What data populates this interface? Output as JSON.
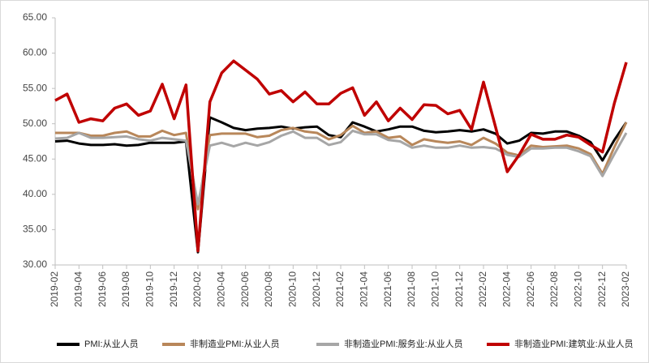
{
  "chart_data": {
    "type": "line",
    "categories": [
      "2019-02",
      null,
      "2019-04",
      null,
      "2019-06",
      null,
      "2019-08",
      null,
      "2019-10",
      null,
      "2019-12",
      null,
      "2020-02",
      null,
      "2020-04",
      null,
      "2020-06",
      null,
      "2020-08",
      null,
      "2020-10",
      null,
      "2020-12",
      null,
      "2021-02",
      null,
      "2021-04",
      null,
      "2021-06",
      null,
      "2021-08",
      null,
      "2021-10",
      null,
      "2021-12",
      null,
      "2022-02",
      null,
      "2022-04",
      null,
      "2022-06",
      null,
      "2022-08",
      null,
      "2022-10",
      null,
      "2022-12",
      null,
      "2023-02"
    ],
    "series": [
      {
        "name": "PMI:从业人员",
        "color": "#000000",
        "values": [
          47.5,
          47.6,
          47.2,
          47.0,
          47.0,
          47.1,
          46.9,
          47.0,
          47.3,
          47.3,
          47.3,
          47.5,
          31.8,
          50.9,
          50.2,
          49.4,
          49.1,
          49.3,
          49.4,
          49.6,
          49.3,
          49.5,
          49.6,
          48.4,
          48.1,
          50.2,
          49.6,
          48.9,
          49.2,
          49.6,
          49.6,
          49.0,
          48.8,
          48.9,
          49.1,
          48.9,
          49.2,
          48.6,
          47.2,
          47.6,
          48.7,
          48.6,
          48.9,
          48.9,
          48.3,
          47.4,
          44.8,
          47.7,
          50.2
        ]
      },
      {
        "name": "非制造业PMI:从业人员",
        "color": "#b8875a",
        "values": [
          48.7,
          48.7,
          48.7,
          48.3,
          48.3,
          48.7,
          48.9,
          48.2,
          48.2,
          49.0,
          48.4,
          48.7,
          37.9,
          48.4,
          48.6,
          48.6,
          48.6,
          48.1,
          48.3,
          49.1,
          49.4,
          48.9,
          48.7,
          47.8,
          48.4,
          49.7,
          48.7,
          48.9,
          48.0,
          48.2,
          47.0,
          47.8,
          47.5,
          47.3,
          47.5,
          47.0,
          48.0,
          47.2,
          45.9,
          45.5,
          46.9,
          46.7,
          46.8,
          46.9,
          46.5,
          45.7,
          42.9,
          46.7,
          50.2
        ]
      },
      {
        "name": "非制造业PMI:服务业:从业人员",
        "color": "#a6a6a6",
        "values": [
          47.9,
          48.0,
          48.7,
          48.0,
          48.0,
          48.1,
          48.2,
          47.8,
          47.6,
          48.0,
          47.8,
          47.6,
          38.6,
          46.9,
          47.3,
          46.8,
          47.3,
          46.9,
          47.4,
          48.3,
          48.9,
          48.0,
          48.0,
          47.0,
          47.4,
          49.0,
          48.5,
          48.5,
          47.7,
          47.5,
          46.6,
          46.9,
          46.6,
          46.6,
          46.9,
          46.6,
          46.7,
          46.5,
          45.6,
          45.3,
          46.5,
          46.5,
          46.6,
          46.6,
          46.1,
          45.4,
          42.6,
          45.7,
          48.7
        ]
      },
      {
        "name": "非制造业PMI:建筑业:从业人员",
        "color": "#c00000",
        "values": [
          53.3,
          54.2,
          50.2,
          50.7,
          50.4,
          52.2,
          52.8,
          51.2,
          51.8,
          55.6,
          50.7,
          55.5,
          32.0,
          53.1,
          57.2,
          58.9,
          57.6,
          56.3,
          54.2,
          54.7,
          53.1,
          54.5,
          52.8,
          52.8,
          54.3,
          55.1,
          51.2,
          53.1,
          50.4,
          52.2,
          50.6,
          52.7,
          52.6,
          51.4,
          51.9,
          49.2,
          55.9,
          49.6,
          43.2,
          45.6,
          48.5,
          47.8,
          47.8,
          48.4,
          48.1,
          47.0,
          46.0,
          52.9,
          58.7
        ]
      }
    ],
    "ylim": [
      30,
      65
    ],
    "yticks": [
      {
        "value": 30,
        "label": "30.00"
      },
      {
        "value": 35,
        "label": "35.00"
      },
      {
        "value": 40,
        "label": "40.00"
      },
      {
        "value": 45,
        "label": "45.00"
      },
      {
        "value": 50,
        "label": "50.00"
      },
      {
        "value": 55,
        "label": "55.00"
      },
      {
        "value": 60,
        "label": "60.00"
      },
      {
        "value": 65,
        "label": "65.00"
      }
    ],
    "grid": false,
    "legend": "bottom"
  }
}
